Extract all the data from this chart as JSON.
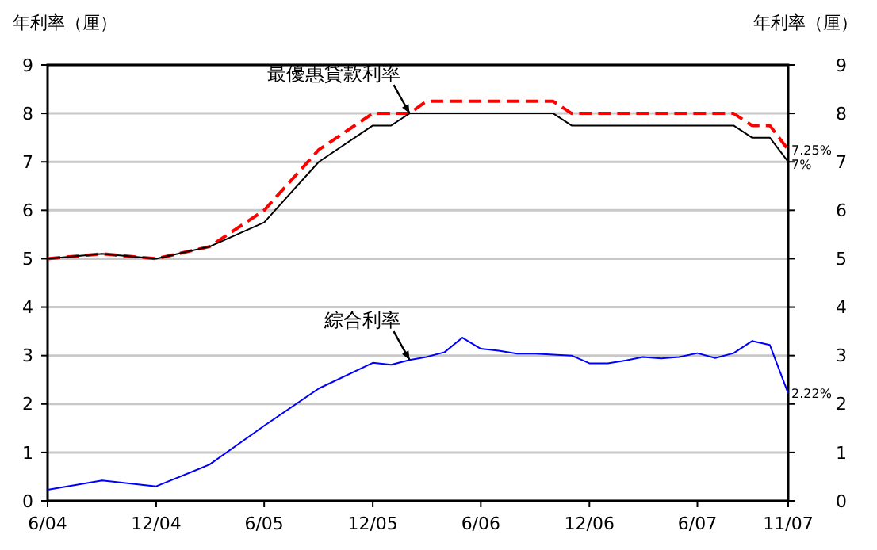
{
  "chart_data": {
    "type": "line",
    "ylabel": "年利率（厘）",
    "y2label": "年利率（厘）",
    "xlim": [
      "2004-06",
      "2007-11"
    ],
    "xticks": [
      {
        "value": "2004-06",
        "label": "6/04"
      },
      {
        "value": "2004-12",
        "label": "12/04"
      },
      {
        "value": "2005-06",
        "label": "6/05"
      },
      {
        "value": "2005-12",
        "label": "12/05"
      },
      {
        "value": "2006-06",
        "label": "6/06"
      },
      {
        "value": "2006-12",
        "label": "12/06"
      },
      {
        "value": "2007-06",
        "label": "6/07"
      },
      {
        "value": "2007-11",
        "label": "11/07"
      }
    ],
    "ylim": [
      0,
      9
    ],
    "yticks": [
      0,
      1,
      2,
      3,
      4,
      5,
      6,
      7,
      8,
      9
    ],
    "y2lim": [
      0,
      9
    ],
    "y2ticks": [
      0,
      1,
      2,
      3,
      4,
      5,
      6,
      7,
      8,
      9
    ],
    "grid": "y",
    "marker": "none",
    "series": [
      {
        "color": "#ff0000",
        "line_style": "dashed",
        "x": [
          "2004-06",
          "2004-09",
          "2004-12",
          "2005-03",
          "2005-06",
          "2005-09",
          "2005-12",
          "2006-01",
          "2006-02",
          "2006-03",
          "2006-10",
          "2006-11",
          "2007-08",
          "2007-09",
          "2007-10",
          "2007-11"
        ],
        "values": [
          5.0,
          5.1,
          5.0,
          5.25,
          6.0,
          7.25,
          8.0,
          8.0,
          8.0,
          8.25,
          8.25,
          8.0,
          8.0,
          7.75,
          7.75,
          7.25
        ]
      },
      {
        "color": "#000000",
        "line_style": "solid",
        "x": [
          "2004-06",
          "2004-09",
          "2004-12",
          "2005-03",
          "2005-06",
          "2005-09",
          "2005-12",
          "2006-01",
          "2006-02",
          "2006-10",
          "2006-11",
          "2007-08",
          "2007-09",
          "2007-10",
          "2007-11"
        ],
        "values": [
          5.0,
          5.1,
          5.0,
          5.25,
          5.75,
          7.0,
          7.75,
          7.75,
          8.0,
          8.0,
          7.75,
          7.75,
          7.5,
          7.5,
          7.0
        ]
      },
      {
        "color": "#0000ff",
        "line_style": "solid",
        "x": [
          "2004-06",
          "2004-09",
          "2004-12",
          "2005-03",
          "2005-06",
          "2005-09",
          "2005-12",
          "2006-01",
          "2006-02",
          "2006-03",
          "2006-04",
          "2006-05",
          "2006-06",
          "2006-07",
          "2006-08",
          "2006-09",
          "2006-10",
          "2006-11",
          "2006-12",
          "2007-01",
          "2007-02",
          "2007-03",
          "2007-04",
          "2007-05",
          "2007-06",
          "2007-07",
          "2007-08",
          "2007-09",
          "2007-10",
          "2007-11"
        ],
        "values": [
          0.23,
          0.42,
          0.3,
          0.75,
          1.55,
          2.32,
          2.85,
          2.81,
          2.91,
          2.97,
          3.07,
          3.37,
          3.14,
          3.1,
          3.04,
          3.04,
          3.02,
          3.0,
          2.84,
          2.84,
          2.9,
          2.97,
          2.94,
          2.97,
          3.05,
          2.95,
          3.05,
          3.3,
          3.22,
          2.22
        ]
      }
    ],
    "annotations": [
      {
        "text": "最優惠貸款利率",
        "x": "2006-02",
        "y": 8.0
      },
      {
        "text": "綜合利率",
        "x": "2006-02",
        "y": 2.91
      },
      {
        "text": "7.25%",
        "x": "2007-11",
        "y": 7.25
      },
      {
        "text": "7%",
        "x": "2007-11",
        "y": 7.0
      },
      {
        "text": "2.22%",
        "x": "2007-11",
        "y": 2.22
      }
    ]
  }
}
